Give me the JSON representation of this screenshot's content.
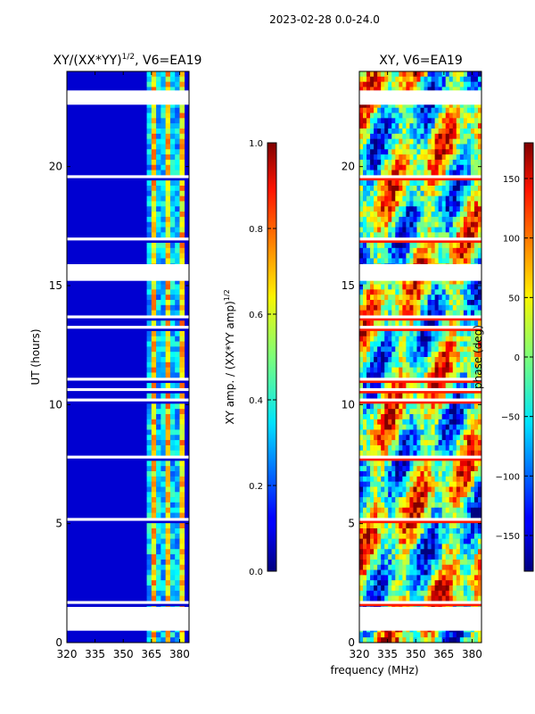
{
  "header": {
    "title": "2023-02-28 0.0-24.0"
  },
  "shared": {
    "xlabel": "frequency (MHz)",
    "ylabel": "UT (hours)"
  },
  "chart_data": [
    {
      "type": "heatmap",
      "name": "normalized-xy-amplitude",
      "title_main": "XY/(XX*YY)",
      "title_exp": "1/2",
      "title_tail": ", V6=EA19",
      "xlabel": "frequency (MHz)",
      "ylabel": "UT (hours)",
      "xlim": [
        320,
        385
      ],
      "ylim": [
        0,
        24
      ],
      "xticks": [
        320,
        335,
        350,
        365,
        380
      ],
      "yticks": [
        0,
        5,
        10,
        15,
        20
      ],
      "colorbar": {
        "label_main": "XY amp. / (XX*YY amp)",
        "label_exp": "1/2",
        "range": [
          0.0,
          1.0
        ],
        "ticks": [
          "0.0",
          "0.2",
          "0.4",
          "0.6",
          "0.8",
          "1.0"
        ],
        "tick_values": [
          0.0,
          0.2,
          0.4,
          0.6,
          0.8,
          1.0
        ],
        "colormap": "jet"
      },
      "gaps_ut": [
        0.5,
        1.5,
        15.2,
        15.9,
        22.6,
        23.2
      ],
      "rfi_band_mhz": [
        363,
        382
      ]
    },
    {
      "type": "heatmap",
      "name": "xy-phase",
      "title": "XY, V6=EA19",
      "xlabel": "frequency (MHz)",
      "ylabel": "",
      "xlim": [
        320,
        385
      ],
      "ylim": [
        0,
        24
      ],
      "xticks": [
        320,
        335,
        350,
        365,
        380
      ],
      "yticks": [
        0,
        5,
        10,
        15,
        20
      ],
      "colorbar": {
        "label": "phase (deg)",
        "range": [
          -180,
          180
        ],
        "ticks": [
          "150",
          "100",
          "50",
          "0",
          "−50",
          "−100",
          "−150"
        ],
        "tick_values": [
          150,
          100,
          50,
          0,
          -50,
          -100,
          -150
        ],
        "colormap": "jet"
      }
    }
  ]
}
